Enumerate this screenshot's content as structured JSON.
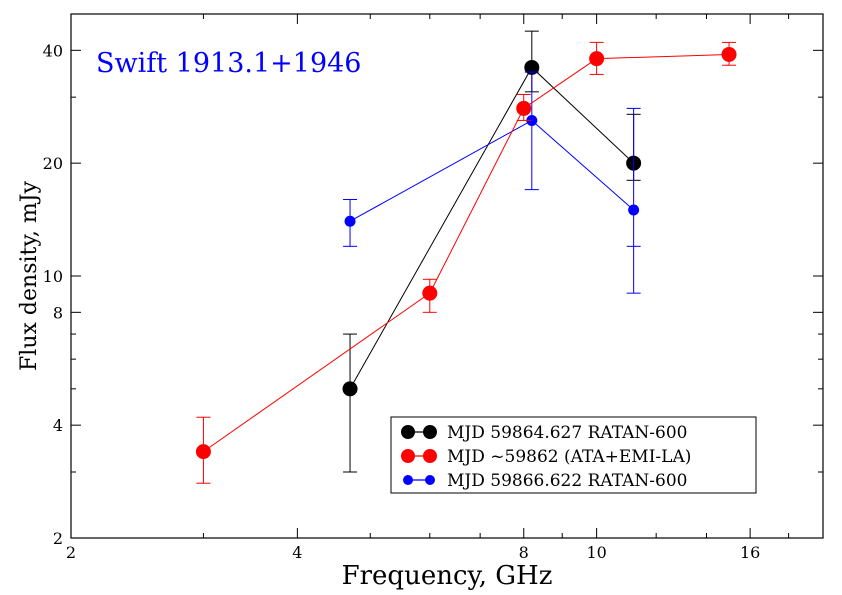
{
  "chart_data": {
    "type": "line",
    "annotation": "Swift 1913.1+1946",
    "annotation_color": "#0000ff",
    "xlabel": "Frequency, GHz",
    "ylabel": "Flux density, mJy",
    "x_scale": "log",
    "y_scale": "log",
    "xlim": [
      2,
      20
    ],
    "ylim": [
      2,
      50
    ],
    "x_ticks": [
      2,
      4,
      8,
      10,
      16
    ],
    "x_tick_labels": [
      "2",
      "4",
      "8",
      "10",
      "16"
    ],
    "y_ticks": [
      2,
      4,
      8,
      10,
      20,
      40
    ],
    "y_tick_labels": [
      "2",
      "4",
      "8",
      "10",
      "20",
      "40"
    ],
    "grid": false,
    "legend_position": "bottom-right",
    "series": [
      {
        "name": "MJD 59864.627  RATAN-600",
        "color": "#000000",
        "marker": "large",
        "points": [
          {
            "x": 4.7,
            "y": 5.0,
            "lo": 3.0,
            "hi": 7.0
          },
          {
            "x": 8.2,
            "y": 36.0,
            "lo": 31.0,
            "hi": 45.0
          },
          {
            "x": 11.2,
            "y": 20.0,
            "lo": 18.0,
            "hi": 27.0
          }
        ]
      },
      {
        "name": "MJD  ~59862 (ATA+EMI-LA)",
        "color": "#ff0000",
        "marker": "large",
        "points": [
          {
            "x": 3.0,
            "y": 3.4,
            "lo": 2.8,
            "hi": 4.2
          },
          {
            "x": 6.0,
            "y": 9.0,
            "lo": 8.0,
            "hi": 9.8
          },
          {
            "x": 8.0,
            "y": 28.0,
            "lo": 26.0,
            "hi": 30.5
          },
          {
            "x": 10.0,
            "y": 38.0,
            "lo": 34.5,
            "hi": 42.0
          },
          {
            "x": 15.0,
            "y": 39.0,
            "lo": 36.5,
            "hi": 42.0
          }
        ]
      },
      {
        "name": "MJD 59866.622  RATAN-600",
        "color": "#0000ff",
        "marker": "small",
        "points": [
          {
            "x": 4.7,
            "y": 14.0,
            "lo": 12.0,
            "hi": 16.0
          },
          {
            "x": 8.2,
            "y": 26.0,
            "lo": 17.0,
            "hi": 35.0
          },
          {
            "x": 11.2,
            "y": 15.0,
            "lo": 9.0,
            "hi": 12.0,
            "hi2": 28.0
          }
        ]
      }
    ]
  }
}
